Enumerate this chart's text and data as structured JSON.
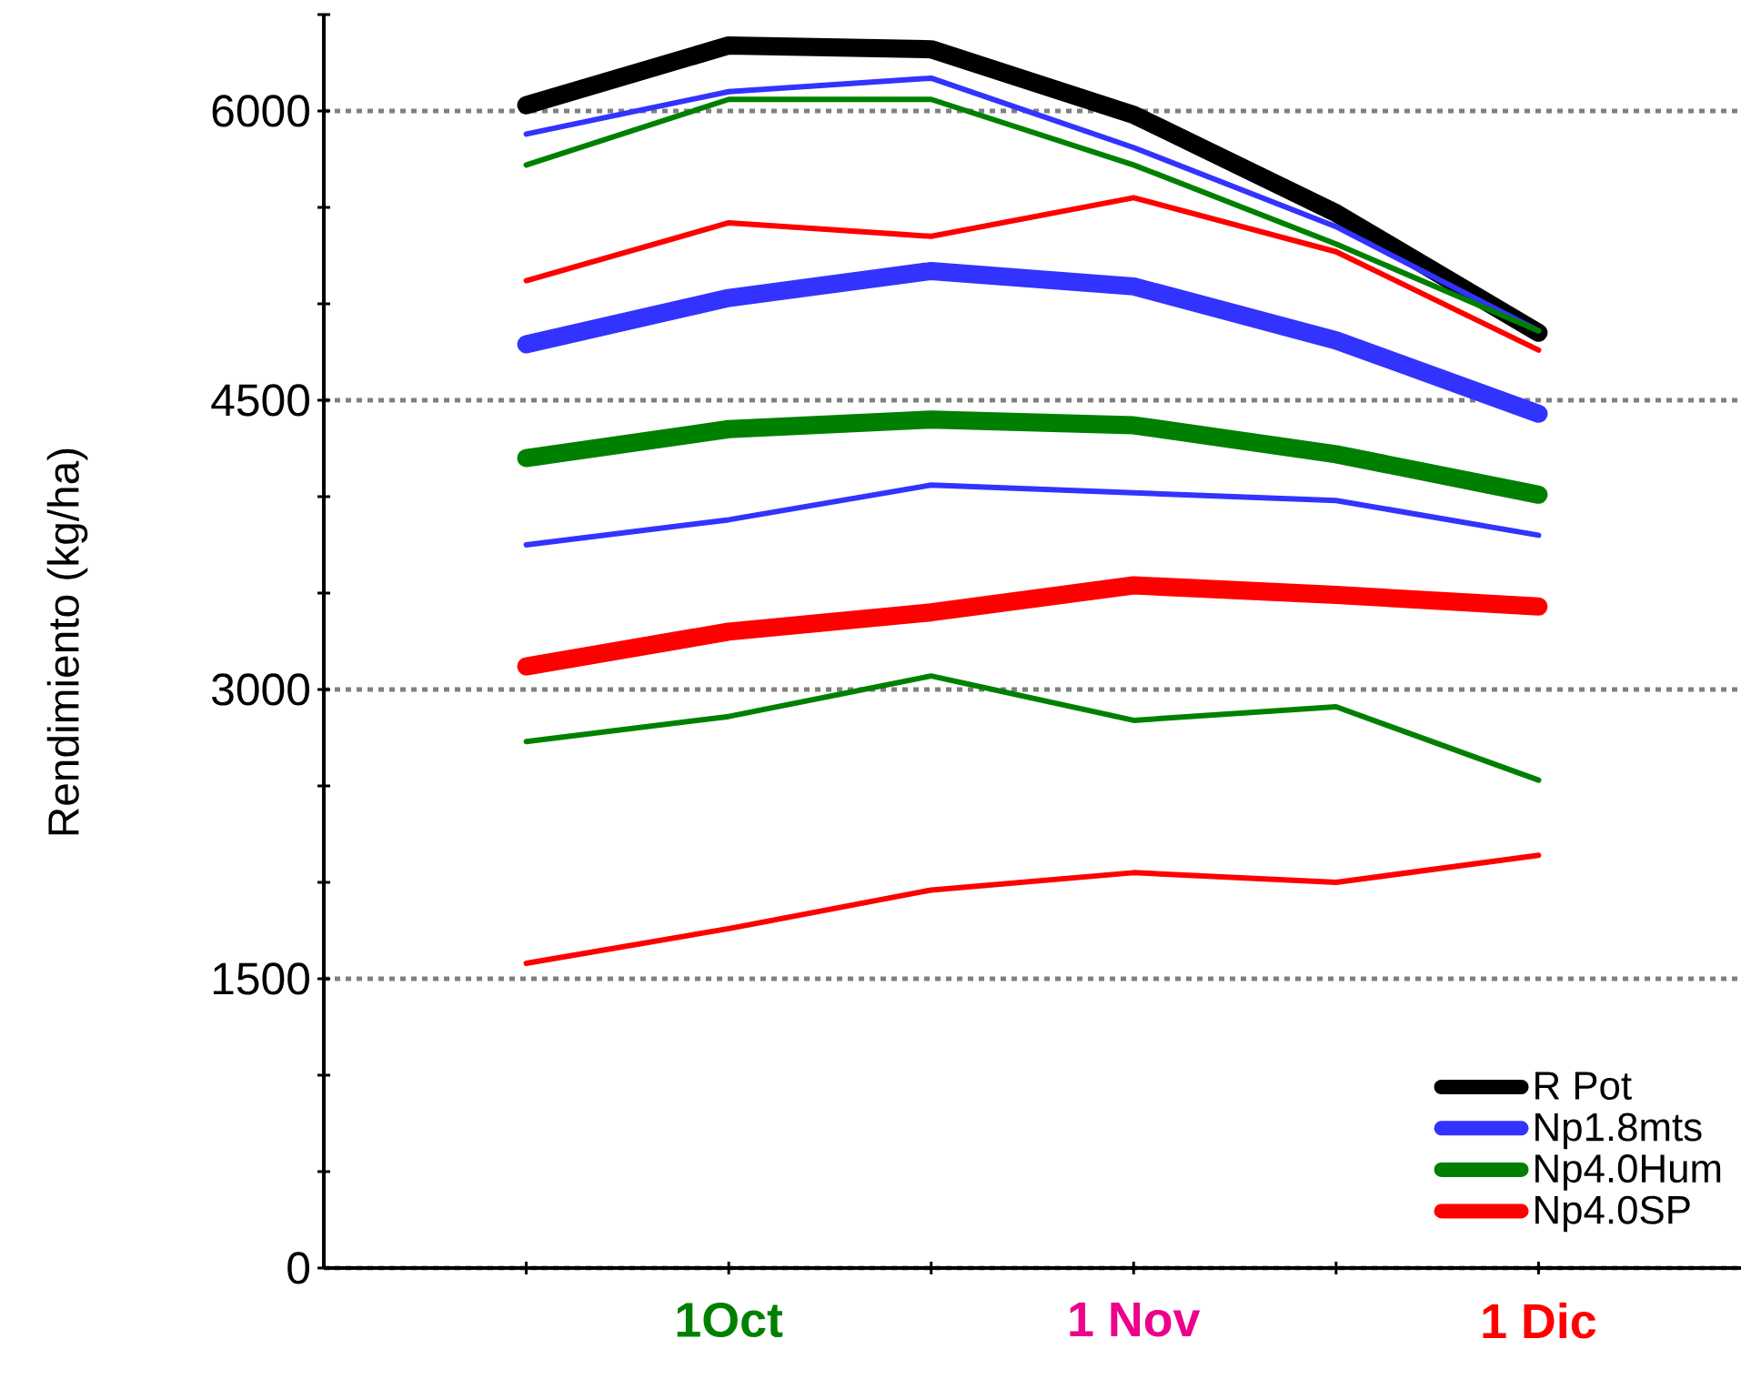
{
  "chart_data": {
    "type": "line",
    "ylabel": "Rendimiento (kg/ha)",
    "categories": [
      null,
      "1Oct",
      null,
      "1 Nov",
      null,
      "1 Dic"
    ],
    "series": [
      {
        "name": "R Pot",
        "color": "#000000",
        "values": [
          6030,
          6340,
          6320,
          5980,
          5470,
          4850
        ]
      },
      {
        "name": "Np1.8mts",
        "color": "#3333ff",
        "values": [
          4790,
          5030,
          5170,
          5090,
          4810,
          4430
        ]
      },
      {
        "name": "Np4.0Hum",
        "color": "#008000",
        "values": [
          4200,
          4350,
          4400,
          4370,
          4220,
          4010
        ]
      },
      {
        "name": "Np4.0SP",
        "color": "#ff0000",
        "values": [
          3120,
          3300,
          3400,
          3540,
          3490,
          3430
        ]
      },
      {
        "color": "#3333ff",
        "values": [
          5880,
          6100,
          6170,
          5810,
          5400,
          4860
        ]
      },
      {
        "color": "#008000",
        "values": [
          5720,
          6060,
          6060,
          5720,
          5310,
          4860
        ]
      },
      {
        "color": "#ff0000",
        "values": [
          5120,
          5420,
          5350,
          5550,
          5270,
          4760
        ]
      },
      {
        "color": "#3333ff",
        "values": [
          3750,
          3880,
          4060,
          4020,
          3980,
          3800
        ]
      },
      {
        "color": "#008000",
        "values": [
          2730,
          2860,
          3070,
          2840,
          2910,
          2530
        ]
      },
      {
        "color": "#ff0000",
        "values": [
          1580,
          1760,
          1960,
          2050,
          2000,
          2140
        ]
      }
    ],
    "ylim": [
      0,
      6500
    ],
    "yticks": [
      0,
      {
        "value": 500,
        "label": null
      },
      {
        "value": 1000,
        "label": null
      },
      1500,
      {
        "value": 2000,
        "label": null
      },
      {
        "value": 2500,
        "label": null
      },
      3000,
      {
        "value": 3500,
        "label": null
      },
      {
        "value": 4000,
        "label": null
      },
      4500,
      {
        "value": 5000,
        "label": null
      },
      {
        "value": 5500,
        "label": null
      },
      6000,
      {
        "value": 6500,
        "label": null
      }
    ],
    "grid": "y",
    "legend": "bottom right",
    "marker": "none",
    "line_style": "solid"
  }
}
